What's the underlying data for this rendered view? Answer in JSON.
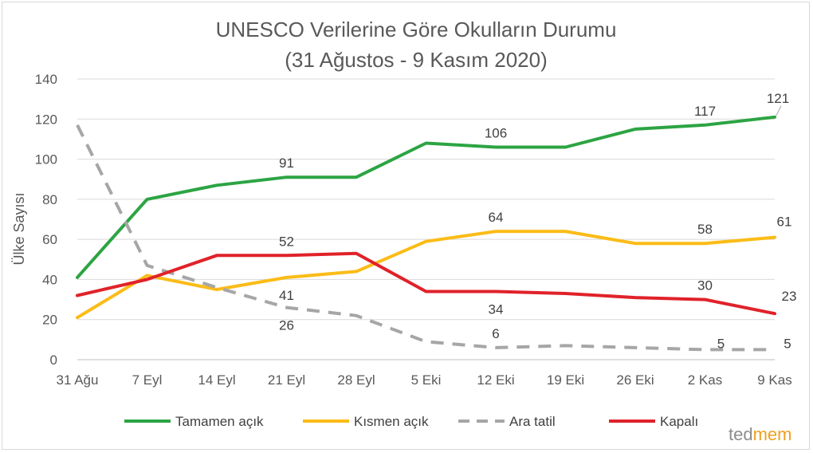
{
  "chart_data": {
    "type": "line",
    "title": "UNESCO Verilerine Göre Okulların Durumu",
    "subtitle": "(31 Ağustos - 9 Kasım 2020)",
    "xlabel": "",
    "ylabel": "Ülke Sayısı",
    "ylim": [
      0,
      140
    ],
    "yticks": [
      0,
      20,
      40,
      60,
      80,
      100,
      120,
      140
    ],
    "grid": true,
    "legend_position": "bottom",
    "categories": [
      "31 Ağu",
      "7 Eyl",
      "14 Eyl",
      "21 Eyl",
      "28 Eyl",
      "5 Eki",
      "12 Eki",
      "19 Eki",
      "26 Eki",
      "2 Kas",
      "9 Kas"
    ],
    "series": [
      {
        "name": "Tamamen açık",
        "color": "#2ca443",
        "dash": false,
        "values": [
          41,
          80,
          87,
          91,
          91,
          108,
          106,
          106,
          115,
          117,
          121
        ],
        "labeled_points": [
          {
            "index": 3,
            "text": "91"
          },
          {
            "index": 6,
            "text": "106"
          },
          {
            "index": 9,
            "text": "117"
          },
          {
            "index": 10,
            "text": "121"
          }
        ]
      },
      {
        "name": "Kısmen açık",
        "color": "#fbbc18",
        "dash": false,
        "values": [
          21,
          42,
          35,
          41,
          44,
          59,
          64,
          64,
          58,
          58,
          61
        ],
        "labeled_points": [
          {
            "index": 3,
            "text": "41"
          },
          {
            "index": 6,
            "text": "64"
          },
          {
            "index": 9,
            "text": "58"
          },
          {
            "index": 10,
            "text": "61"
          }
        ]
      },
      {
        "name": "Ara tatil",
        "color": "#a6a6a6",
        "dash": true,
        "values": [
          117,
          47,
          36,
          26,
          22,
          9,
          6,
          7,
          6,
          5,
          5
        ],
        "labeled_points": [
          {
            "index": 3,
            "text": "26"
          },
          {
            "index": 6,
            "text": "6"
          },
          {
            "index": 9,
            "text": "5"
          },
          {
            "index": 10,
            "text": "5"
          }
        ]
      },
      {
        "name": "Kapalı",
        "color": "#e0222a",
        "dash": false,
        "values": [
          32,
          40,
          52,
          52,
          53,
          34,
          34,
          33,
          31,
          30,
          23
        ],
        "labeled_points": [
          {
            "index": 3,
            "text": "52"
          },
          {
            "index": 6,
            "text": "34"
          },
          {
            "index": 9,
            "text": "30"
          },
          {
            "index": 10,
            "text": "23"
          }
        ]
      }
    ]
  },
  "brand": {
    "part1": "ted",
    "part2": "mem",
    "color1": "#8c8c8c",
    "color2": "#f0a020"
  }
}
